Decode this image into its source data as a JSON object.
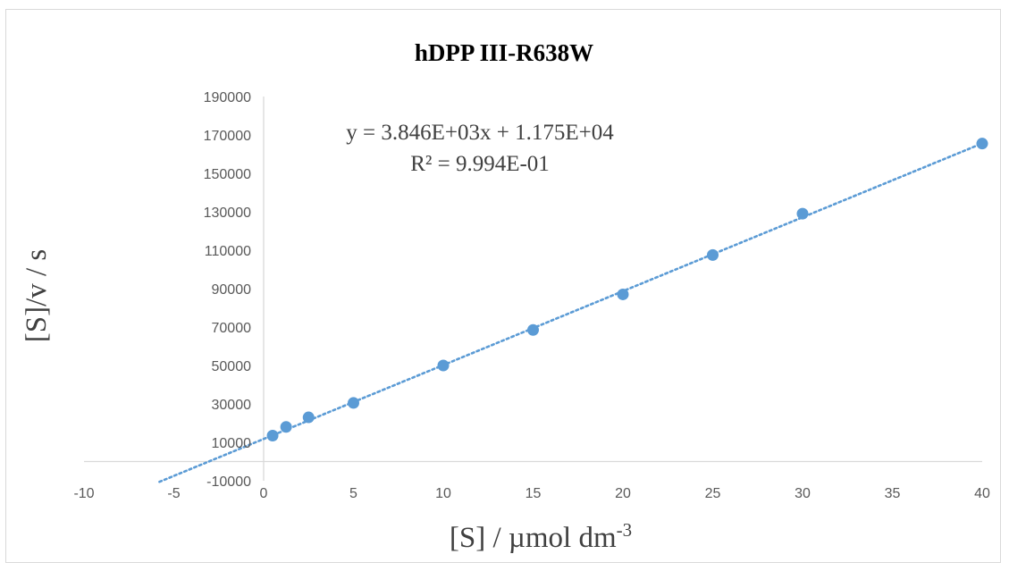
{
  "chart_data": {
    "type": "scatter",
    "title": "hDPP III-R638W",
    "xlabel": "[S] / µmol dm",
    "xlabel_sup": "-3",
    "ylabel": "[S]/v / s",
    "xlim": [
      -10,
      40
    ],
    "ylim": [
      -10000,
      190000
    ],
    "x_ticks": [
      -10,
      -5,
      0,
      5,
      10,
      15,
      20,
      25,
      30,
      35,
      40
    ],
    "y_ticks": [
      -10000,
      10000,
      30000,
      50000,
      70000,
      90000,
      110000,
      130000,
      150000,
      170000,
      190000
    ],
    "grid": false,
    "legend": "none",
    "points": [
      {
        "x": 0.5,
        "y": 13500
      },
      {
        "x": 1.25,
        "y": 18000
      },
      {
        "x": 2.5,
        "y": 23000
      },
      {
        "x": 5,
        "y": 30500
      },
      {
        "x": 10,
        "y": 50000
      },
      {
        "x": 15,
        "y": 68500
      },
      {
        "x": 20,
        "y": 87000
      },
      {
        "x": 25,
        "y": 107500
      },
      {
        "x": 30,
        "y": 129000
      },
      {
        "x": 40,
        "y": 165500
      }
    ],
    "trendline": {
      "type": "linear",
      "slope": 3846,
      "intercept": 11750,
      "x_range": [
        -5.8,
        40
      ],
      "equation": "y = 3.846E+03x + 1.175E+04",
      "r_squared": "R² = 9.994E-01",
      "style": "dotted"
    },
    "colors": {
      "marker": "#5b9bd5",
      "trendline": "#5b9bd5",
      "axis": "#d9d9d9"
    }
  }
}
